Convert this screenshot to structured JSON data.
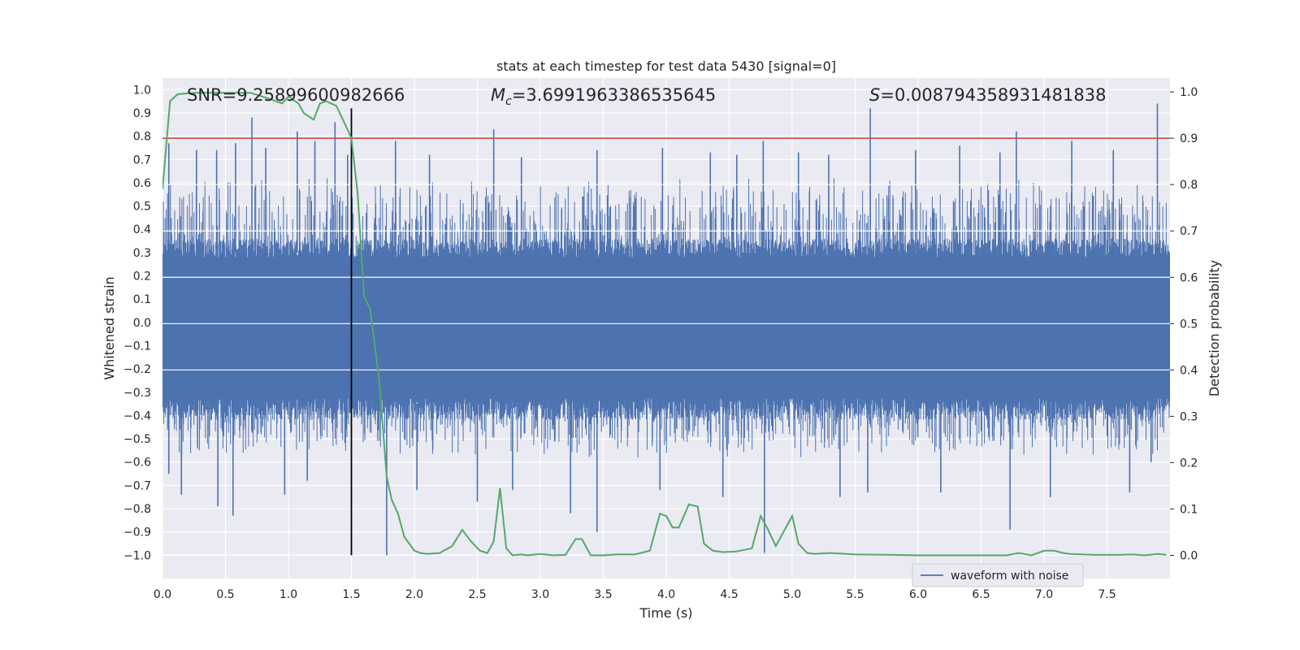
{
  "chart_data": {
    "type": "line",
    "title": "stats at each timestep for test data 5430 [signal=0]",
    "xlabel": "Time (s)",
    "ylabel": "Whitened strain",
    "y2label": "Detection probability",
    "xlim": [
      0.0,
      8.0
    ],
    "ylim": [
      -1.1,
      1.05
    ],
    "y2lim": [
      -0.05,
      1.03
    ],
    "xticks": [
      "0.0",
      "0.5",
      "1.0",
      "1.5",
      "2.0",
      "2.5",
      "3.0",
      "3.5",
      "4.0",
      "4.5",
      "5.0",
      "5.5",
      "6.0",
      "6.5",
      "7.0",
      "7.5"
    ],
    "yticks": [
      "1.0",
      "0.9",
      "0.8",
      "0.7",
      "0.6",
      "0.5",
      "0.4",
      "0.3",
      "0.2",
      "0.1",
      "0.0",
      "-0.1",
      "-0.2",
      "-0.3",
      "-0.4",
      "-0.5",
      "-0.6",
      "-0.7",
      "-0.8",
      "-0.9",
      "-1.0"
    ],
    "y2ticks": [
      "1.0",
      "0.9",
      "0.8",
      "0.7",
      "0.6",
      "0.5",
      "0.4",
      "0.3",
      "0.2",
      "0.1",
      "0.0"
    ],
    "grid": true,
    "legend": {
      "position": "bottom-right",
      "entries": [
        "waveform with noise"
      ]
    },
    "annotations": {
      "snr": "SNR=9.25899600982666",
      "mc_symbol": "M",
      "mc_sub": "c",
      "mc_value": "=3.6991963386535645",
      "s_symbol": "S",
      "s_value": "=0.008794358931481838"
    },
    "threshold": {
      "value": 0.9,
      "axis": "right",
      "color": "#c44e52"
    },
    "vline": {
      "x": 1.5,
      "ymin": -1.0,
      "ymax": 0.92,
      "color": "#000000"
    },
    "waveform": {
      "name": "waveform with noise",
      "color": "#4c72b0",
      "duration": 8.0,
      "band_upper": 0.36,
      "band_lower": -0.42,
      "positive_peaks": [
        {
          "x": 0.05,
          "y": 0.77
        },
        {
          "x": 0.27,
          "y": 0.74
        },
        {
          "x": 0.43,
          "y": 0.74
        },
        {
          "x": 0.58,
          "y": 0.77
        },
        {
          "x": 0.71,
          "y": 0.88
        },
        {
          "x": 0.82,
          "y": 0.75
        },
        {
          "x": 1.07,
          "y": 0.82
        },
        {
          "x": 1.21,
          "y": 0.78
        },
        {
          "x": 1.37,
          "y": 0.86
        },
        {
          "x": 1.47,
          "y": 0.72
        },
        {
          "x": 1.85,
          "y": 0.78
        },
        {
          "x": 2.12,
          "y": 0.72
        },
        {
          "x": 2.63,
          "y": 0.83
        },
        {
          "x": 2.85,
          "y": 0.71
        },
        {
          "x": 3.45,
          "y": 0.74
        },
        {
          "x": 3.97,
          "y": 0.75
        },
        {
          "x": 4.35,
          "y": 0.73
        },
        {
          "x": 4.56,
          "y": 0.72
        },
        {
          "x": 4.77,
          "y": 0.78
        },
        {
          "x": 5.05,
          "y": 0.73
        },
        {
          "x": 5.29,
          "y": 0.72
        },
        {
          "x": 5.62,
          "y": 0.92
        },
        {
          "x": 5.98,
          "y": 0.74
        },
        {
          "x": 6.33,
          "y": 0.76
        },
        {
          "x": 6.65,
          "y": 0.73
        },
        {
          "x": 6.78,
          "y": 0.82
        },
        {
          "x": 7.22,
          "y": 0.78
        },
        {
          "x": 7.55,
          "y": 0.74
        },
        {
          "x": 7.9,
          "y": 0.94
        }
      ],
      "negative_peaks": [
        {
          "x": 0.05,
          "y": -0.65
        },
        {
          "x": 0.15,
          "y": -0.74
        },
        {
          "x": 0.44,
          "y": -0.79
        },
        {
          "x": 0.56,
          "y": -0.83
        },
        {
          "x": 0.97,
          "y": -0.74
        },
        {
          "x": 1.15,
          "y": -0.68
        },
        {
          "x": 1.78,
          "y": -1.0
        },
        {
          "x": 2.02,
          "y": -0.72
        },
        {
          "x": 2.5,
          "y": -0.77
        },
        {
          "x": 2.78,
          "y": -0.72
        },
        {
          "x": 3.24,
          "y": -0.82
        },
        {
          "x": 3.45,
          "y": -0.9
        },
        {
          "x": 3.95,
          "y": -0.72
        },
        {
          "x": 4.45,
          "y": -0.75
        },
        {
          "x": 4.78,
          "y": -0.99
        },
        {
          "x": 5.38,
          "y": -0.75
        },
        {
          "x": 5.6,
          "y": -0.73
        },
        {
          "x": 6.18,
          "y": -0.73
        },
        {
          "x": 6.73,
          "y": -0.89
        },
        {
          "x": 7.05,
          "y": -0.75
        },
        {
          "x": 7.68,
          "y": -0.73
        },
        {
          "x": 7.85,
          "y": -0.6
        }
      ]
    },
    "probability": {
      "name": "detection probability",
      "color": "#55a868",
      "x": [
        0.0,
        0.06,
        0.12,
        0.25,
        0.45,
        0.7,
        0.85,
        0.95,
        1.0,
        1.08,
        1.12,
        1.2,
        1.25,
        1.3,
        1.38,
        1.45,
        1.5,
        1.55,
        1.6,
        1.65,
        1.72,
        1.78,
        1.82,
        1.87,
        1.92,
        2.0,
        2.05,
        2.1,
        2.2,
        2.3,
        2.38,
        2.45,
        2.52,
        2.58,
        2.63,
        2.68,
        2.73,
        2.78,
        2.85,
        2.9,
        3.0,
        3.1,
        3.2,
        3.28,
        3.33,
        3.4,
        3.5,
        3.6,
        3.75,
        3.87,
        3.95,
        4.0,
        4.05,
        4.1,
        4.18,
        4.25,
        4.3,
        4.37,
        4.45,
        4.55,
        4.68,
        4.75,
        4.8,
        4.87,
        4.93,
        5.0,
        5.05,
        5.12,
        5.18,
        5.3,
        5.5,
        5.8,
        6.0,
        6.3,
        6.5,
        6.7,
        6.8,
        6.9,
        7.0,
        7.08,
        7.15,
        7.2,
        7.4,
        7.6,
        7.7,
        7.8,
        7.9,
        7.97
      ],
      "y": [
        0.79,
        0.98,
        0.995,
        0.998,
        0.998,
        0.998,
        0.985,
        0.975,
        0.99,
        0.975,
        0.955,
        0.94,
        0.975,
        0.98,
        0.97,
        0.93,
        0.9,
        0.78,
        0.56,
        0.53,
        0.38,
        0.17,
        0.12,
        0.09,
        0.04,
        0.01,
        0.005,
        0.003,
        0.005,
        0.02,
        0.055,
        0.03,
        0.01,
        0.005,
        0.03,
        0.145,
        0.015,
        0.0,
        0.002,
        0.0,
        0.003,
        0.0,
        0.001,
        0.035,
        0.035,
        0.0,
        0.0,
        0.002,
        0.002,
        0.01,
        0.09,
        0.085,
        0.06,
        0.06,
        0.11,
        0.105,
        0.025,
        0.01,
        0.007,
        0.008,
        0.015,
        0.085,
        0.06,
        0.02,
        0.05,
        0.085,
        0.025,
        0.005,
        0.003,
        0.005,
        0.002,
        0.001,
        0.0,
        0.0,
        0.0,
        0.0,
        0.005,
        0.0,
        0.01,
        0.01,
        0.005,
        0.003,
        0.001,
        0.001,
        0.002,
        0.0,
        0.003,
        0.001
      ]
    }
  }
}
